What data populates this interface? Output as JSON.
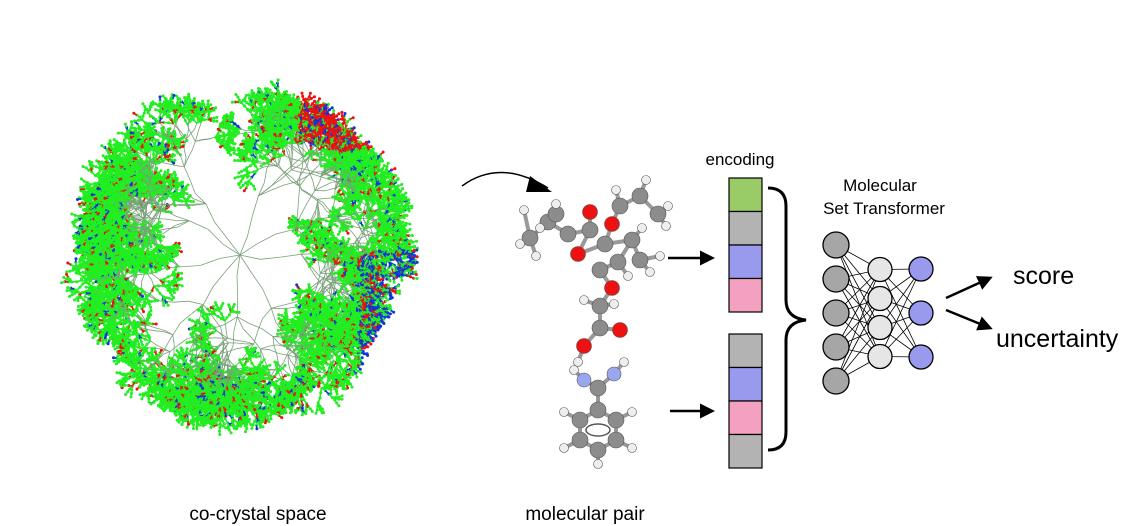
{
  "labels": {
    "space": "co-crystal space",
    "pair": "molecular pair",
    "encoding": "encoding",
    "model_line1": "Molecular",
    "model_line2": "Set Transformer",
    "score": "score",
    "uncertainty": "uncertainty"
  },
  "colors": {
    "tree_green": "#22ee22",
    "tree_red": "#ee1111",
    "tree_blue": "#1133dd",
    "enc_green": "#99cc66",
    "enc_gray": "#b3b3b3",
    "enc_blue": "#9999ee",
    "enc_pink": "#f4a0c0",
    "node_gray": "#a6a6a6",
    "node_light": "#e6e6e6",
    "node_blue": "#9999ee",
    "atom_carbon": "#8c8c8c",
    "atom_oxygen": "#ee1111",
    "atom_hydrogen": "#eeeeee",
    "atom_nitrogen": "#9aa6ee"
  },
  "encoding_blocks": {
    "molecule_a": [
      "enc_green",
      "enc_gray",
      "enc_blue",
      "enc_pink"
    ],
    "molecule_b": [
      "enc_gray",
      "enc_blue",
      "enc_pink",
      "enc_gray"
    ]
  },
  "network_layers": [
    {
      "count": 5,
      "color": "node_gray"
    },
    {
      "count": 4,
      "color": "node_light"
    },
    {
      "count": 3,
      "color": "node_blue"
    }
  ]
}
